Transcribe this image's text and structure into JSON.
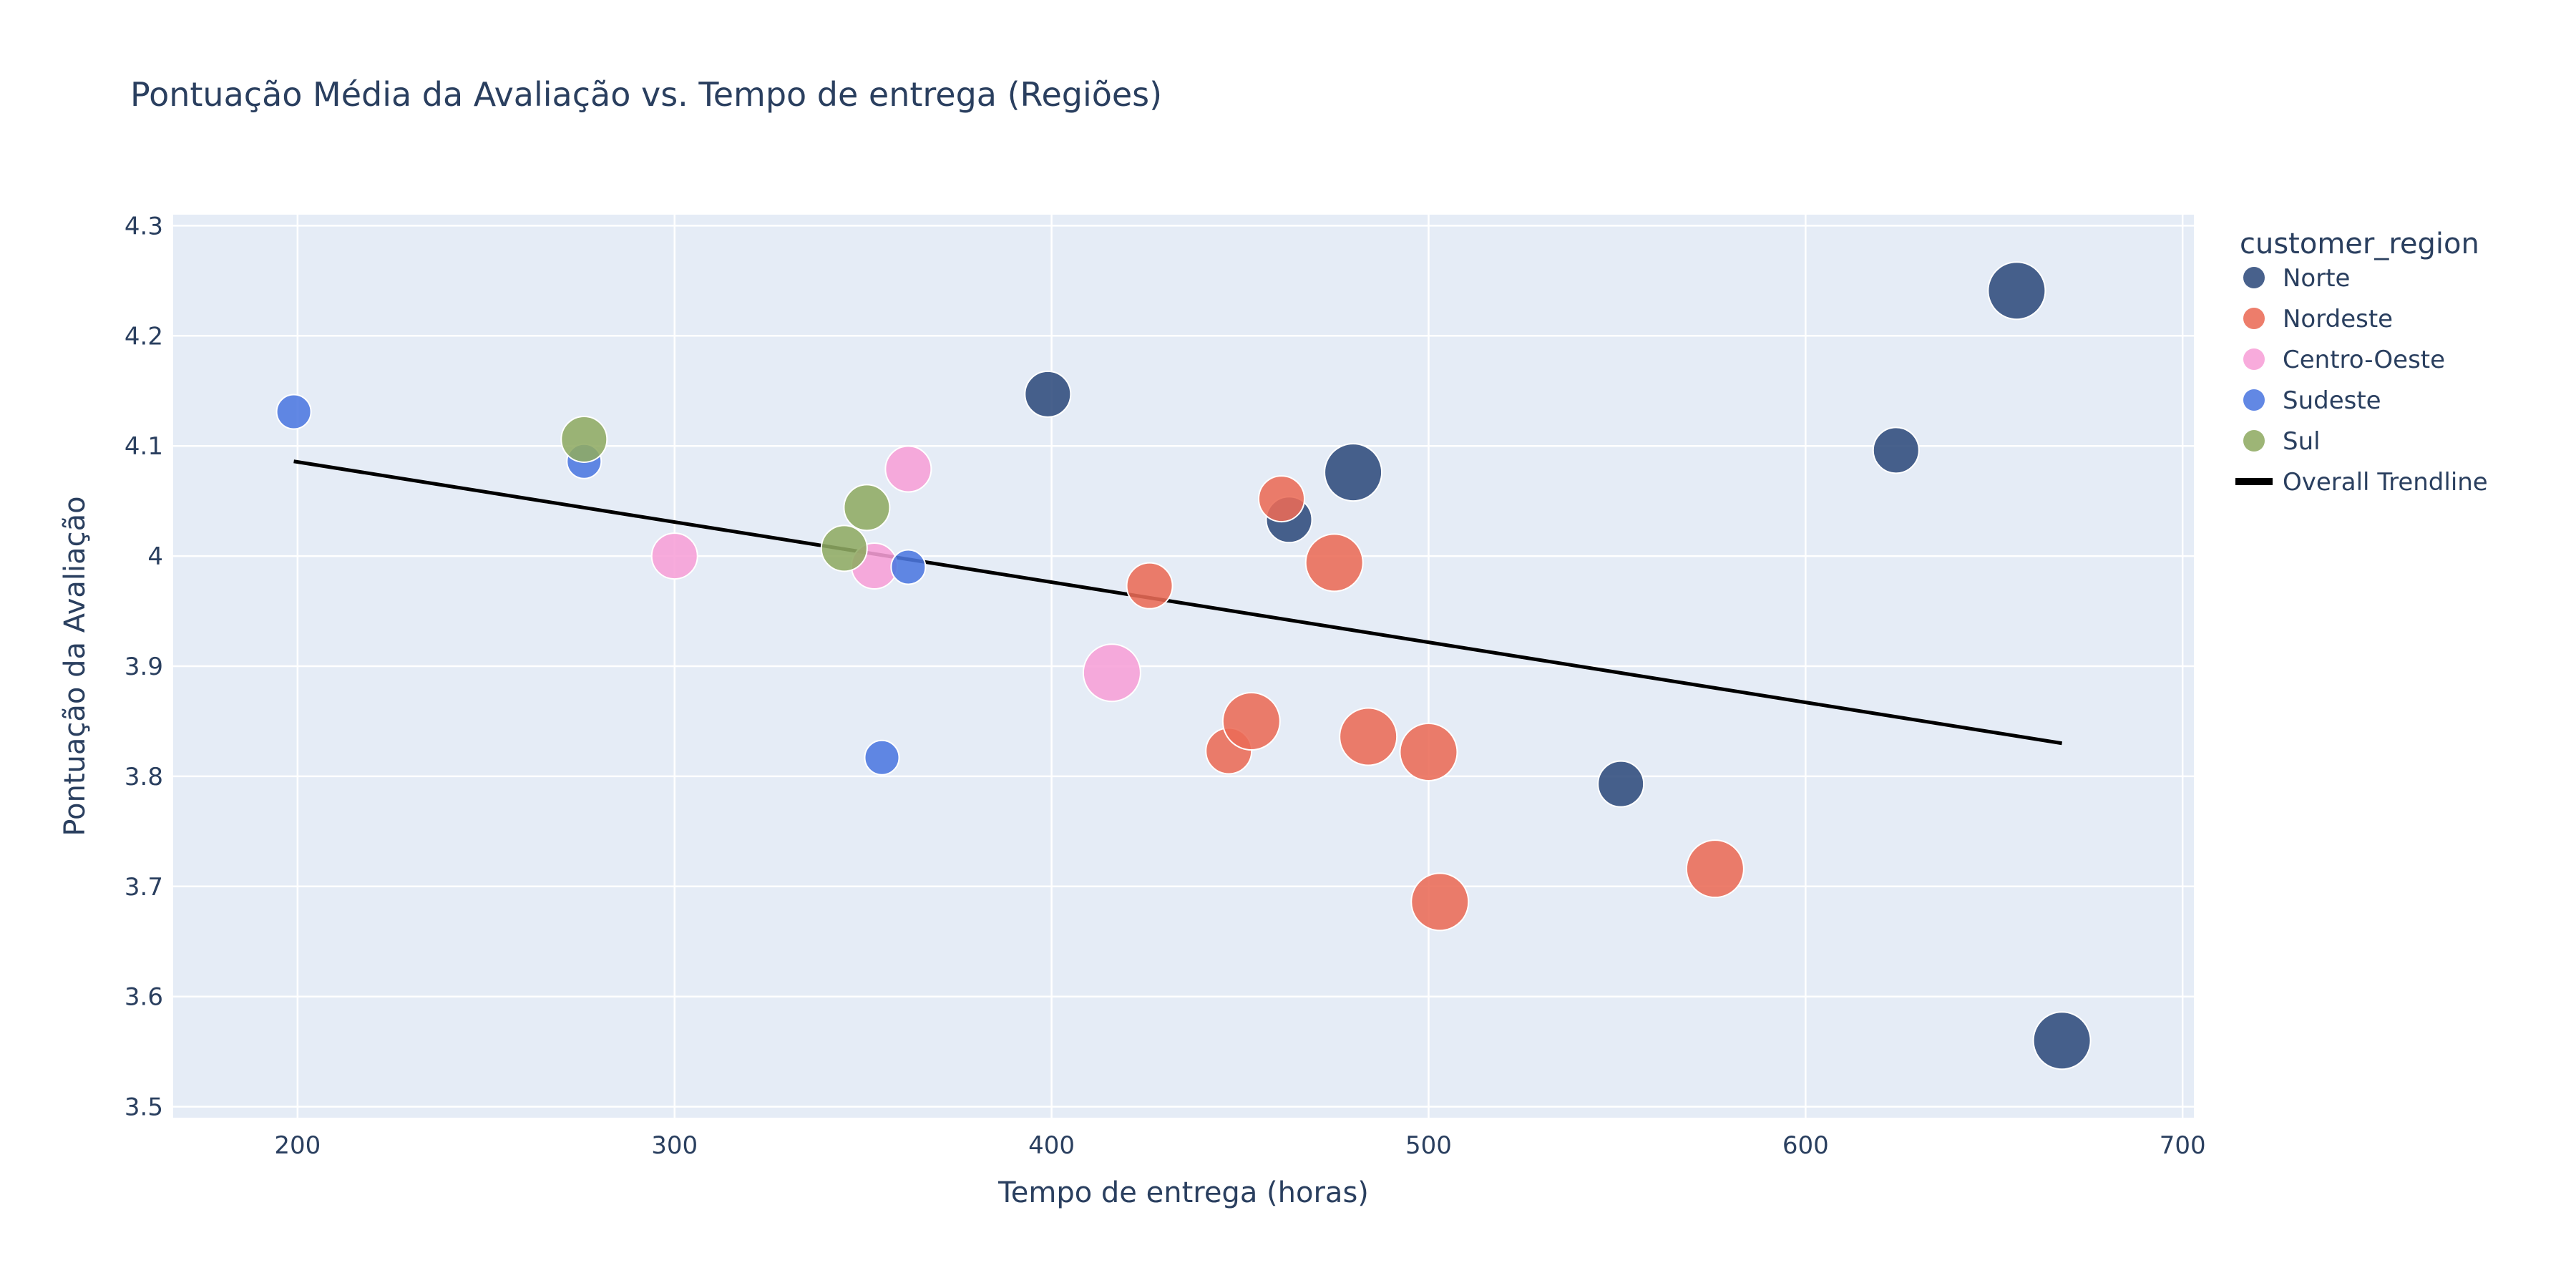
{
  "chart_data": {
    "type": "scatter",
    "title": "Pontuação Média da Avaliação vs. Tempo de entrega (Regiões)",
    "xlabel": "Tempo de entrega (horas)",
    "ylabel": "Pontuação da Avaliação",
    "xlim": [
      167,
      703
    ],
    "ylim": [
      3.49,
      4.31
    ],
    "xticks": [
      200,
      300,
      400,
      500,
      600,
      700
    ],
    "yticks": [
      3.5,
      3.6,
      3.7,
      3.8,
      3.9,
      4.0,
      4.1,
      4.2,
      4.3
    ],
    "ytick_labels": [
      "3.5",
      "3.6",
      "3.7",
      "3.8",
      "3.9",
      "4",
      "4.1",
      "4.2",
      "4.3"
    ],
    "grid": true,
    "legend": {
      "title": "customer_region",
      "placement": "right"
    },
    "series": [
      {
        "name": "Norte",
        "color": "#2f4b7c",
        "points": [
          {
            "x": 399,
            "y": 4.147,
            "size": 3
          },
          {
            "x": 463,
            "y": 4.033,
            "size": 3
          },
          {
            "x": 480,
            "y": 4.076,
            "size": 4
          },
          {
            "x": 551,
            "y": 3.793,
            "size": 3
          },
          {
            "x": 624,
            "y": 4.096,
            "size": 3
          },
          {
            "x": 656,
            "y": 4.241,
            "size": 4
          },
          {
            "x": 668,
            "y": 3.56,
            "size": 4
          }
        ]
      },
      {
        "name": "Nordeste",
        "color": "#ea6b57",
        "points": [
          {
            "x": 426,
            "y": 3.973,
            "size": 3
          },
          {
            "x": 447,
            "y": 3.823,
            "size": 3
          },
          {
            "x": 453,
            "y": 3.85,
            "size": 4
          },
          {
            "x": 461,
            "y": 4.052,
            "size": 3
          },
          {
            "x": 475,
            "y": 3.994,
            "size": 4
          },
          {
            "x": 484,
            "y": 3.836,
            "size": 4
          },
          {
            "x": 500,
            "y": 3.822,
            "size": 4
          },
          {
            "x": 503,
            "y": 3.686,
            "size": 4
          },
          {
            "x": 576,
            "y": 3.716,
            "size": 4
          }
        ]
      },
      {
        "name": "Centro-Oeste",
        "color": "#f79fd7",
        "points": [
          {
            "x": 300,
            "y": 4.0,
            "size": 3
          },
          {
            "x": 353,
            "y": 3.991,
            "size": 3
          },
          {
            "x": 362,
            "y": 4.079,
            "size": 3
          },
          {
            "x": 416,
            "y": 3.894,
            "size": 4
          }
        ]
      },
      {
        "name": "Sudeste",
        "color": "#4c78e0",
        "points": [
          {
            "x": 199,
            "y": 4.131,
            "size": 2
          },
          {
            "x": 276,
            "y": 4.086,
            "size": 2
          },
          {
            "x": 355,
            "y": 3.817,
            "size": 2
          },
          {
            "x": 362,
            "y": 3.99,
            "size": 2
          }
        ]
      },
      {
        "name": "Sul",
        "color": "#8fab63",
        "points": [
          {
            "x": 276,
            "y": 4.106,
            "size": 3
          },
          {
            "x": 345,
            "y": 4.007,
            "size": 3
          },
          {
            "x": 351,
            "y": 4.044,
            "size": 3
          }
        ]
      }
    ],
    "trendline": {
      "name": "Overall Trendline",
      "color": "#000000",
      "x": [
        199,
        668
      ],
      "y": [
        4.086,
        3.83
      ]
    }
  }
}
